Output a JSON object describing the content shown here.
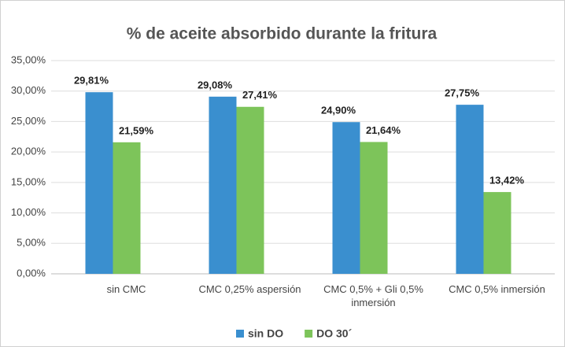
{
  "chart_data": {
    "type": "bar",
    "title": "% de aceite absorbido durante la fritura",
    "categories": [
      "sin CMC",
      "CMC 0,25% aspersión",
      "CMC 0,5% + Gli 0,5% inmersión",
      "CMC 0,5% inmersión"
    ],
    "series": [
      {
        "name": "sin DO",
        "color": "#3a8fcf",
        "values": [
          29.81,
          29.08,
          24.9,
          27.75
        ],
        "value_labels": [
          "29,81%",
          "29,08%",
          "24,90%",
          "27,75%"
        ]
      },
      {
        "name": "DO 30´",
        "color": "#7dc45a",
        "values": [
          21.59,
          27.41,
          21.64,
          13.42
        ],
        "value_labels": [
          "21,59%",
          "27,41%",
          "21,64%",
          "13,42%"
        ]
      }
    ],
    "ylim": [
      0,
      35
    ],
    "yticks": [
      {
        "value": 0,
        "label": "0,00%"
      },
      {
        "value": 5,
        "label": "5,00%"
      },
      {
        "value": 10,
        "label": "10,00%"
      },
      {
        "value": 15,
        "label": "15,00%"
      },
      {
        "value": 20,
        "label": "20,00%"
      },
      {
        "value": 25,
        "label": "25,00%"
      },
      {
        "value": 30,
        "label": "30,00%"
      },
      {
        "value": 35,
        "label": "35,00%"
      }
    ],
    "grid": true,
    "legend": "bottom"
  }
}
